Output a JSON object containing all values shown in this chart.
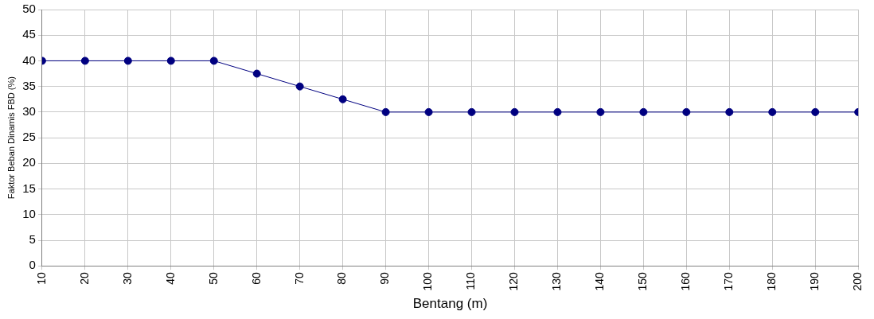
{
  "chart_data": {
    "type": "line",
    "xlabel": "Bentang (m)",
    "ylabel": "Faktor Beban Dinamis FBD (%)",
    "x": [
      10,
      20,
      30,
      40,
      50,
      60,
      70,
      80,
      90,
      100,
      110,
      120,
      130,
      140,
      150,
      160,
      170,
      180,
      190,
      200
    ],
    "series": [
      {
        "color": "#000080",
        "values": [
          40,
          40,
          40,
          40,
          40,
          37.5,
          35,
          32.5,
          30,
          30,
          30,
          30,
          30,
          30,
          30,
          30,
          30,
          30,
          30,
          30
        ]
      }
    ],
    "xlim": [
      10,
      200
    ],
    "xticks": [
      10,
      20,
      30,
      40,
      50,
      60,
      70,
      80,
      90,
      100,
      110,
      120,
      130,
      140,
      150,
      160,
      170,
      180,
      190,
      200
    ],
    "ylim": [
      0,
      50
    ],
    "yticks": [
      0,
      5,
      10,
      15,
      20,
      25,
      30,
      35,
      40,
      45,
      50
    ],
    "grid": true,
    "legend": false,
    "marker": "circle",
    "line_style": "solid"
  }
}
